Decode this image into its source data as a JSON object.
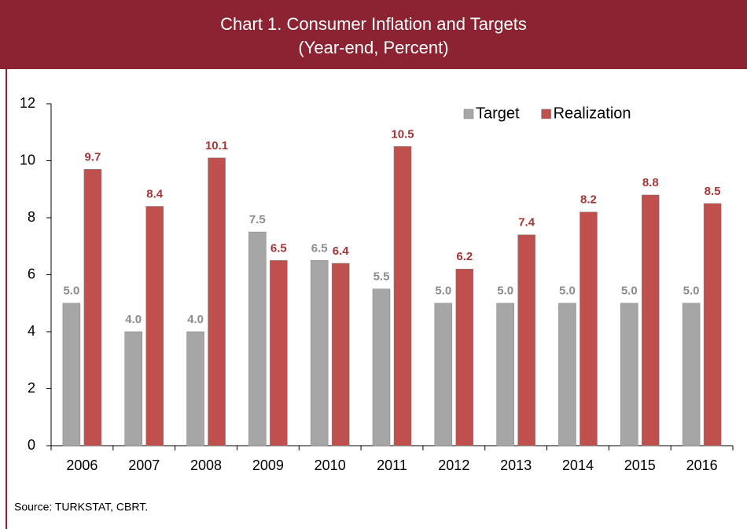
{
  "chart_data": {
    "type": "bar",
    "title": "Chart 1. Consumer Inflation and Targets",
    "subtitle": "(Year-end, Percent)",
    "categories": [
      "2006",
      "2007",
      "2008",
      "2009",
      "2010",
      "2011",
      "2012",
      "2013",
      "2014",
      "2015",
      "2016"
    ],
    "series": [
      {
        "name": "Target",
        "color": "#a6a6a6",
        "label_color": "#8c8c8c",
        "values": [
          5,
          4,
          4,
          7.5,
          6.5,
          5.5,
          5,
          5,
          5,
          5,
          5
        ],
        "value_labels": [
          "5.0",
          "4.0",
          "4.0",
          "7.5",
          "6.5",
          "5.5",
          "5.0",
          "5.0",
          "5.0",
          "5.0",
          "5.0"
        ]
      },
      {
        "name": "Realization",
        "color": "#c0504d",
        "label_color": "#a33636",
        "values": [
          9.7,
          8.4,
          10.1,
          6.5,
          6.4,
          10.5,
          6.2,
          7.4,
          8.2,
          8.8,
          8.5
        ]
      }
    ],
    "ylim": [
      0,
      12
    ],
    "yticks": [
      0,
      2,
      4,
      6,
      8,
      10,
      12
    ],
    "legend": "upper right",
    "source": "Source: TURKSTAT, CBRT."
  }
}
